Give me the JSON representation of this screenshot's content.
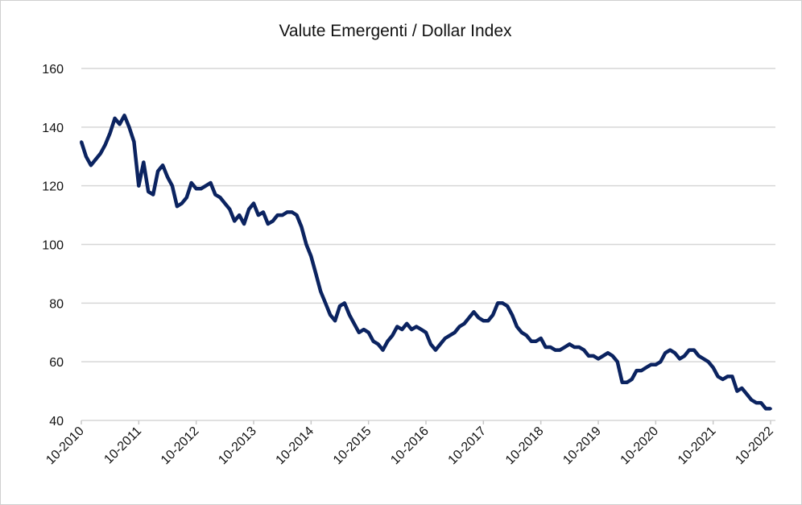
{
  "chart_data": {
    "type": "line",
    "title": "Valute Emergenti / Dollar Index",
    "xlabel": "",
    "ylabel": "",
    "ylim": [
      40,
      160
    ],
    "yticks": [
      40,
      60,
      80,
      100,
      120,
      140,
      160
    ],
    "xticks": [
      "10-2010",
      "10-2011",
      "10-2012",
      "10-2013",
      "10-2014",
      "10-2015",
      "10-2016",
      "10-2017",
      "10-2018",
      "10-2019",
      "10-2020",
      "10-2021",
      "10-2022"
    ],
    "grid": "horizontal",
    "line_color": "#0b2360",
    "series": [
      {
        "x": [
          "2010-10",
          "2010-11",
          "2010-12",
          "2011-01",
          "2011-02",
          "2011-03",
          "2011-04",
          "2011-05",
          "2011-06",
          "2011-07",
          "2011-08",
          "2011-09",
          "2011-10",
          "2011-11",
          "2011-12",
          "2012-01",
          "2012-02",
          "2012-03",
          "2012-04",
          "2012-05",
          "2012-06",
          "2012-07",
          "2012-08",
          "2012-09",
          "2012-10",
          "2012-11",
          "2012-12",
          "2013-01",
          "2013-02",
          "2013-03",
          "2013-04",
          "2013-05",
          "2013-06",
          "2013-07",
          "2013-08",
          "2013-09",
          "2013-10",
          "2013-11",
          "2013-12",
          "2014-01",
          "2014-02",
          "2014-03",
          "2014-04",
          "2014-05",
          "2014-06",
          "2014-07",
          "2014-08",
          "2014-09",
          "2014-10",
          "2014-11",
          "2014-12",
          "2015-01",
          "2015-02",
          "2015-03",
          "2015-04",
          "2015-05",
          "2015-06",
          "2015-07",
          "2015-08",
          "2015-09",
          "2015-10",
          "2015-11",
          "2015-12",
          "2016-01",
          "2016-02",
          "2016-03",
          "2016-04",
          "2016-05",
          "2016-06",
          "2016-07",
          "2016-08",
          "2016-09",
          "2016-10",
          "2016-11",
          "2016-12",
          "2017-01",
          "2017-02",
          "2017-03",
          "2017-04",
          "2017-05",
          "2017-06",
          "2017-07",
          "2017-08",
          "2017-09",
          "2017-10",
          "2017-11",
          "2017-12",
          "2018-01",
          "2018-02",
          "2018-03",
          "2018-04",
          "2018-05",
          "2018-06",
          "2018-07",
          "2018-08",
          "2018-09",
          "2018-10",
          "2018-11",
          "2018-12",
          "2019-01",
          "2019-02",
          "2019-03",
          "2019-04",
          "2019-05",
          "2019-06",
          "2019-07",
          "2019-08",
          "2019-09",
          "2019-10",
          "2019-11",
          "2019-12",
          "2020-01",
          "2020-02",
          "2020-03",
          "2020-04",
          "2020-05",
          "2020-06",
          "2020-07",
          "2020-08",
          "2020-09",
          "2020-10",
          "2020-11",
          "2020-12",
          "2021-01",
          "2021-02",
          "2021-03",
          "2021-04",
          "2021-05",
          "2021-06",
          "2021-07",
          "2021-08",
          "2021-09",
          "2021-10",
          "2021-11",
          "2021-12",
          "2022-01",
          "2022-02",
          "2022-03",
          "2022-04",
          "2022-05",
          "2022-06",
          "2022-07",
          "2022-08",
          "2022-09",
          "2022-10"
        ],
        "y": [
          135,
          130,
          127,
          129,
          131,
          134,
          138,
          143,
          141,
          144,
          140,
          135,
          120,
          128,
          118,
          117,
          125,
          127,
          123,
          120,
          113,
          114,
          116,
          121,
          119,
          119,
          120,
          121,
          117,
          116,
          114,
          112,
          108,
          110,
          107,
          112,
          114,
          110,
          111,
          107,
          108,
          110,
          110,
          111,
          111,
          110,
          106,
          100,
          96,
          90,
          84,
          80,
          76,
          74,
          79,
          80,
          76,
          73,
          70,
          71,
          70,
          67,
          66,
          64,
          67,
          69,
          72,
          71,
          73,
          71,
          72,
          71,
          70,
          66,
          64,
          66,
          68,
          69,
          70,
          72,
          73,
          75,
          77,
          75,
          74,
          74,
          76,
          80,
          80,
          79,
          76,
          72,
          70,
          69,
          67,
          67,
          68,
          65,
          65,
          64,
          64,
          65,
          66,
          65,
          65,
          64,
          62,
          62,
          61,
          62,
          63,
          62,
          60,
          53,
          53,
          54,
          57,
          57,
          58,
          59,
          59,
          60,
          63,
          64,
          63,
          61,
          62,
          64,
          64,
          62,
          61,
          60,
          58,
          55,
          54,
          55,
          55,
          50,
          51,
          49,
          47,
          46,
          46,
          44,
          44
        ]
      }
    ]
  }
}
